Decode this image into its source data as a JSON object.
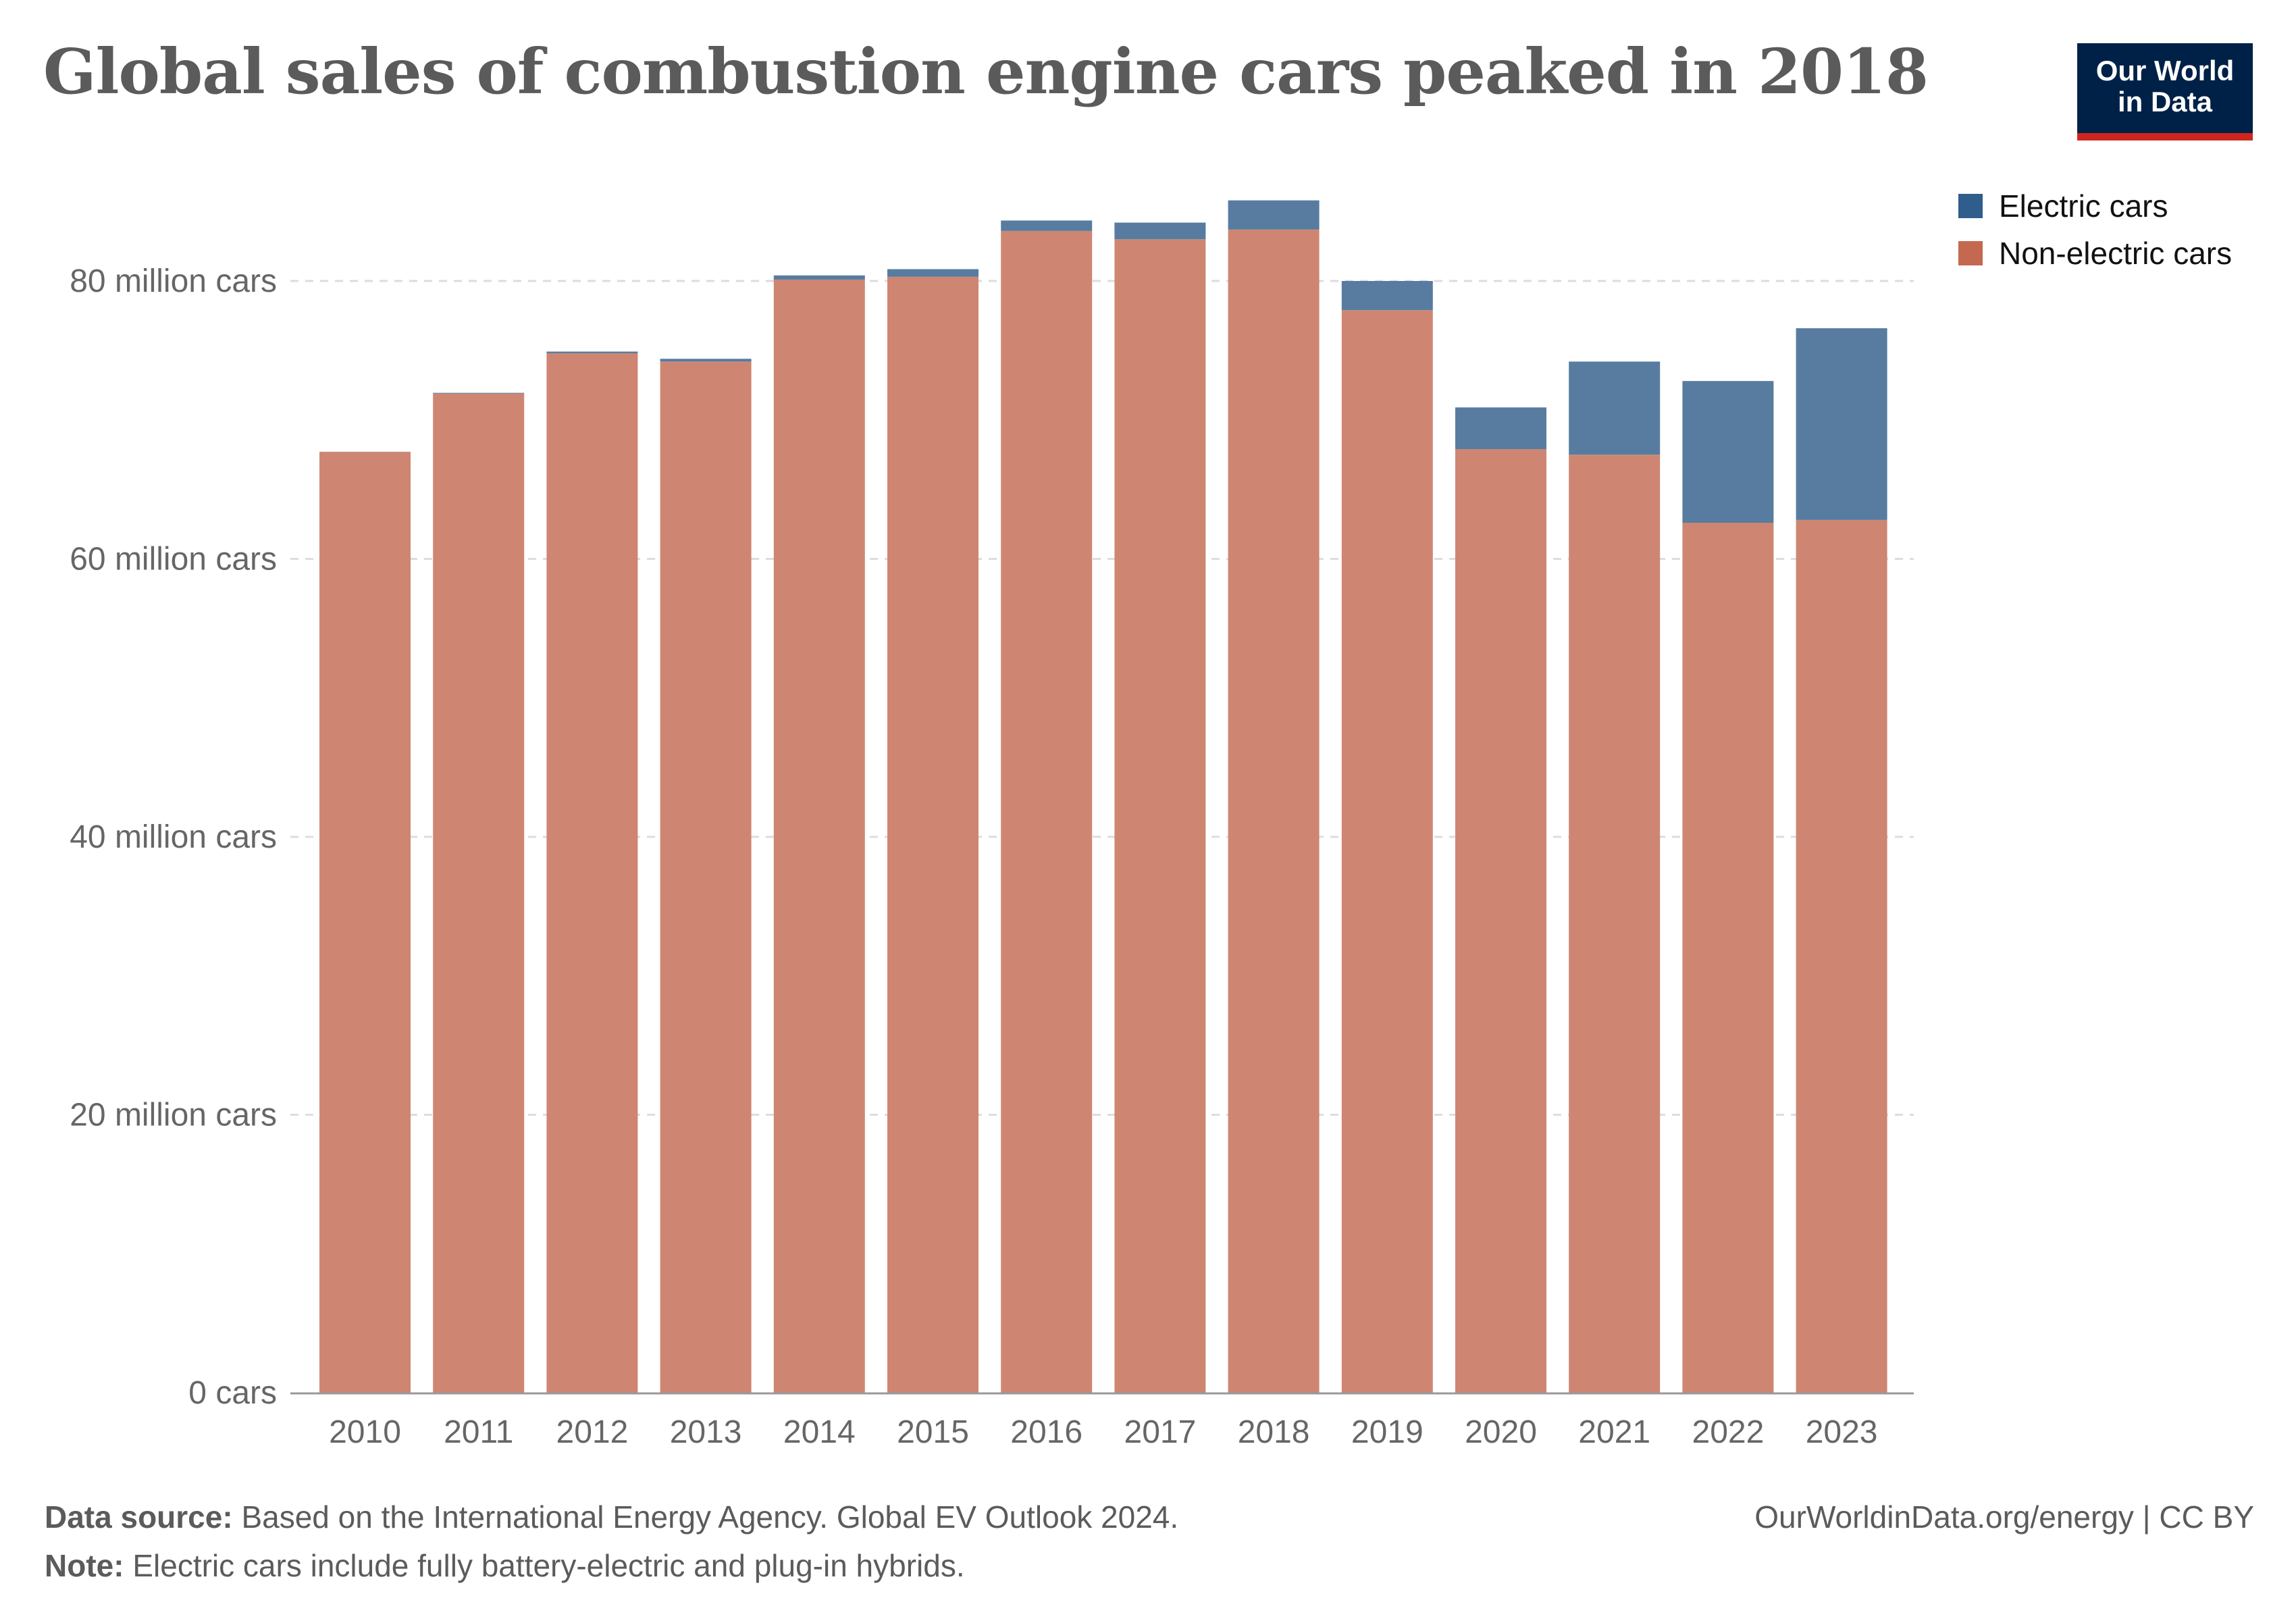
{
  "title": "Global sales of combustion engine cars peaked in 2018",
  "logo": {
    "line1": "Our World",
    "line2": "in Data"
  },
  "footer": {
    "source_label": "Data source:",
    "source_text": "Based on the International Energy Agency. Global EV Outlook 2024.",
    "note_label": "Note:",
    "note_text": "Electric cars include fully battery-electric and plug-in hybrids.",
    "url_license": "OurWorldinData.org/energy | CC BY"
  },
  "chart_data": {
    "type": "bar",
    "stacked": true,
    "title": "Global sales of combustion engine cars peaked in 2018",
    "xlabel": "",
    "ylabel": "",
    "ylim": [
      0,
      85.8
    ],
    "grid": true,
    "legend_position": "top-right",
    "categories": [
      "2010",
      "2011",
      "2012",
      "2013",
      "2014",
      "2015",
      "2016",
      "2017",
      "2018",
      "2019",
      "2020",
      "2021",
      "2022",
      "2023"
    ],
    "yticks": [
      {
        "value": 0,
        "label": "0 cars"
      },
      {
        "value": 20,
        "label": "20 million cars"
      },
      {
        "value": 40,
        "label": "40 million cars"
      },
      {
        "value": 60,
        "label": "60 million cars"
      },
      {
        "value": 80,
        "label": "80 million cars"
      }
    ],
    "series": [
      {
        "name": "Non-electric cars",
        "color": "#ce8673",
        "legend_color": "#c4694f",
        "values": [
          67.7,
          71.9,
          74.8,
          74.2,
          80.1,
          80.3,
          83.6,
          83.0,
          83.7,
          77.9,
          67.9,
          67.5,
          62.6,
          62.8
        ]
      },
      {
        "name": "Electric cars",
        "color": "#577ca0",
        "legend_color": "#2f5d8c",
        "values": [
          0.01,
          0.05,
          0.12,
          0.2,
          0.3,
          0.55,
          0.75,
          1.2,
          2.1,
          2.1,
          3.0,
          6.7,
          10.2,
          13.8
        ]
      }
    ]
  }
}
